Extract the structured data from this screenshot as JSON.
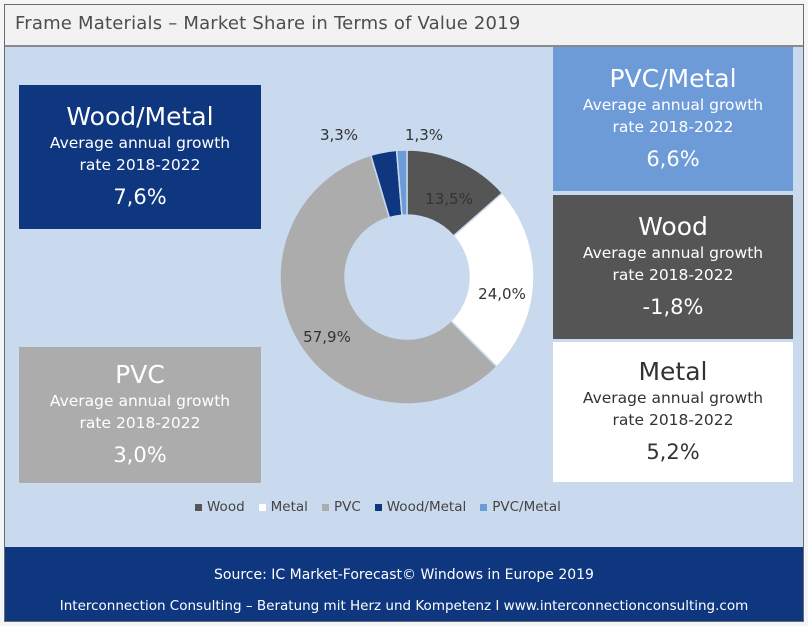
{
  "header": {
    "title": "Frame Materials – Market Share in Terms of Value 2019"
  },
  "chart_data": {
    "type": "pie",
    "title": "Frame Materials – Market Share in Terms of Value 2019",
    "categories": [
      "Wood",
      "Metal",
      "PVC",
      "Wood/Metal",
      "PVC/Metal"
    ],
    "values": [
      13.5,
      24.0,
      57.9,
      3.3,
      1.3
    ],
    "labels": [
      "13,5%",
      "24,0%",
      "57,9%",
      "3,3%",
      "1,3%"
    ],
    "colors": [
      "#555555",
      "#ffffff",
      "#acacac",
      "#0f3780",
      "#6d9bd8"
    ],
    "legend_position": "bottom",
    "donut": true
  },
  "growth_boxes": {
    "wood_metal": {
      "name": "Wood/Metal",
      "desc1": "Average annual growth",
      "desc2": "rate 2018-2022",
      "value": "7,6%"
    },
    "pvc_metal": {
      "name": "PVC/Metal",
      "desc1": "Average annual growth",
      "desc2": "rate 2018-2022",
      "value": "6,6%"
    },
    "wood": {
      "name": "Wood",
      "desc1": "Average annual growth",
      "desc2": "rate 2018-2022",
      "value": "-1,8%"
    },
    "metal": {
      "name": "Metal",
      "desc1": "Average annual growth",
      "desc2": "rate 2018-2022",
      "value": "5,2%"
    },
    "pvc": {
      "name": "PVC",
      "desc1": "Average annual growth",
      "desc2": "rate 2018-2022",
      "value": "3,0%"
    }
  },
  "footer": {
    "source": "Source: IC Market-Forecast© Windows in Europe 2019",
    "credit": "Interconnection Consulting – Beratung mit Herz und Kompetenz  I  www.interconnectionconsulting.com"
  }
}
